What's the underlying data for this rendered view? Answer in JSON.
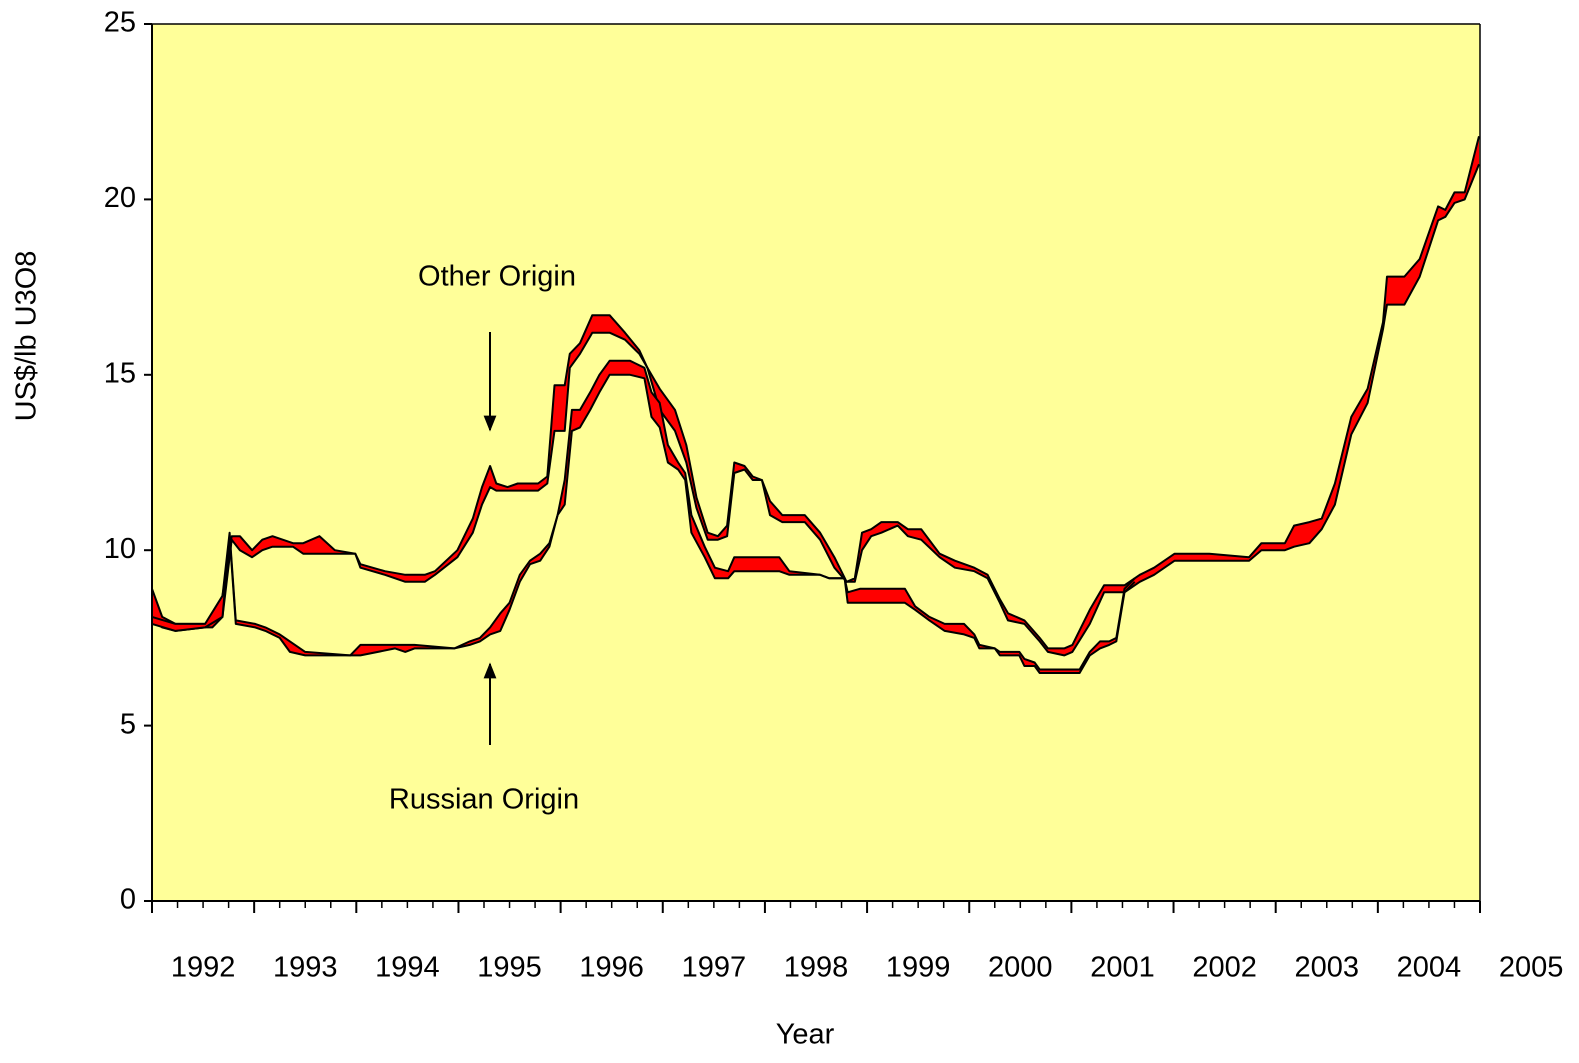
{
  "chart_data": {
    "type": "range_area",
    "x_label": "Year",
    "y_label": "US$/lb U3O8",
    "xlim": [
      1992,
      2005
    ],
    "xticks": [
      1992,
      1993,
      1994,
      1995,
      1996,
      1997,
      1998,
      1999,
      2000,
      2001,
      2002,
      2003,
      2004,
      2005
    ],
    "ylim": [
      0,
      25
    ],
    "yticks": [
      0,
      5,
      10,
      15,
      20,
      25
    ],
    "grid": false,
    "plot_background": "#ffff99",
    "series": [
      {
        "name": "Other Origin",
        "color": "#ff0000",
        "x": [
          1992.0,
          1992.1,
          1992.23,
          1992.52,
          1992.59,
          1992.69,
          1992.78,
          1992.86,
          1992.98,
          1993.08,
          1993.18,
          1993.38,
          1993.48,
          1993.64,
          1993.79,
          1993.99,
          1994.04,
          1994.28,
          1994.48,
          1994.67,
          1994.77,
          1994.99,
          1995.14,
          1995.23,
          1995.31,
          1995.37,
          1995.48,
          1995.58,
          1995.68,
          1995.78,
          1995.87,
          1995.94,
          1996.04,
          1996.09,
          1996.19,
          1996.31,
          1996.48,
          1996.63,
          1996.77,
          1996.85,
          1996.97,
          1997.12,
          1997.23,
          1997.33,
          1997.44,
          1997.54,
          1997.63,
          1997.7,
          1997.8,
          1997.88,
          1997.97,
          1998.05,
          1998.17,
          1998.39,
          1998.54,
          1998.68,
          1998.8,
          1998.88,
          1998.95,
          1999.04,
          1999.14,
          1999.3,
          1999.4,
          1999.53,
          1999.71,
          1999.86,
          2000.05,
          2000.18,
          2000.3,
          2000.38,
          2000.54,
          2000.69,
          2000.77,
          2000.93,
          2001.01,
          2001.18,
          2001.32,
          2001.52,
          2001.67,
          2001.81,
          2002.01,
          2002.35,
          2002.74,
          2002.86,
          2003.09,
          2003.18,
          2003.33,
          2003.45,
          2003.58,
          2003.74,
          2003.9,
          2004.05,
          2004.09,
          2004.26,
          2004.41,
          2004.59,
          2004.66,
          2004.75,
          2004.85,
          2004.99
        ],
        "low": [
          8.0,
          7.8,
          7.7,
          7.8,
          7.8,
          8.1,
          10.3,
          10.0,
          9.8,
          10.0,
          10.1,
          10.1,
          9.9,
          9.9,
          9.9,
          9.9,
          9.5,
          9.3,
          9.1,
          9.1,
          9.3,
          9.8,
          10.5,
          11.3,
          11.8,
          11.7,
          11.7,
          11.7,
          11.7,
          11.7,
          11.9,
          13.4,
          13.4,
          15.2,
          15.6,
          16.2,
          16.2,
          16.0,
          15.6,
          15.2,
          14.0,
          13.4,
          12.5,
          11.2,
          10.3,
          10.3,
          10.4,
          12.2,
          12.3,
          12.0,
          12.0,
          11.0,
          10.8,
          10.8,
          10.3,
          9.5,
          9.1,
          9.1,
          10.0,
          10.4,
          10.5,
          10.7,
          10.4,
          10.3,
          9.8,
          9.5,
          9.4,
          9.2,
          8.5,
          8.0,
          7.9,
          7.4,
          7.1,
          7.0,
          7.1,
          7.9,
          8.8,
          8.8,
          9.1,
          9.3,
          9.7,
          9.7,
          9.7,
          10.0,
          10.0,
          10.1,
          10.2,
          10.6,
          11.3,
          13.3,
          14.2,
          16.3,
          17.0,
          17.0,
          17.8,
          19.4,
          19.5,
          19.9,
          20.0,
          21.0
        ],
        "high": [
          8.9,
          8.1,
          7.9,
          7.9,
          8.0,
          8.7,
          10.4,
          10.4,
          10.0,
          10.3,
          10.4,
          10.2,
          10.2,
          10.4,
          10.0,
          9.9,
          9.6,
          9.4,
          9.3,
          9.3,
          9.4,
          10.0,
          10.9,
          11.8,
          12.4,
          11.9,
          11.8,
          11.9,
          11.9,
          11.9,
          12.1,
          14.7,
          14.7,
          15.6,
          15.9,
          16.7,
          16.7,
          16.2,
          15.7,
          15.2,
          14.6,
          14.0,
          13.0,
          11.5,
          10.5,
          10.4,
          10.7,
          12.5,
          12.4,
          12.1,
          12.0,
          11.4,
          11.0,
          11.0,
          10.5,
          9.8,
          9.1,
          9.2,
          10.5,
          10.6,
          10.8,
          10.8,
          10.6,
          10.6,
          9.9,
          9.7,
          9.5,
          9.3,
          8.6,
          8.2,
          8.0,
          7.5,
          7.2,
          7.2,
          7.3,
          8.3,
          9.0,
          9.0,
          9.3,
          9.5,
          9.9,
          9.9,
          9.8,
          10.2,
          10.2,
          10.7,
          10.8,
          10.9,
          11.9,
          13.8,
          14.6,
          16.5,
          17.8,
          17.8,
          18.3,
          19.8,
          19.7,
          20.2,
          20.2,
          21.8
        ]
      },
      {
        "name": "Russian Origin",
        "color": "#ff0000",
        "x": [
          1992.0,
          1992.23,
          1992.52,
          1992.69,
          1992.76,
          1992.82,
          1993.01,
          1993.11,
          1993.25,
          1993.35,
          1993.5,
          1993.94,
          1994.04,
          1994.38,
          1994.48,
          1994.57,
          1994.96,
          1995.11,
          1995.21,
          1995.31,
          1995.41,
          1995.5,
          1995.6,
          1995.7,
          1995.8,
          1995.89,
          1995.97,
          1996.04,
          1996.11,
          1996.19,
          1996.29,
          1996.38,
          1996.48,
          1996.68,
          1996.82,
          1996.89,
          1996.97,
          1997.05,
          1997.15,
          1997.22,
          1997.28,
          1997.41,
          1997.51,
          1997.64,
          1997.7,
          1998.14,
          1998.24,
          1998.54,
          1998.63,
          1998.78,
          1998.81,
          1998.93,
          1999.37,
          1999.47,
          1999.61,
          1999.76,
          1999.95,
          2000.05,
          2000.1,
          2000.25,
          2000.3,
          2000.49,
          2000.54,
          2000.64,
          2000.69,
          2001.08,
          2001.18,
          2001.28,
          2001.37,
          2001.44,
          2001.52,
          2001.62
        ],
        "low": [
          7.9,
          7.7,
          7.8,
          8.1,
          10.4,
          7.9,
          7.8,
          7.7,
          7.5,
          7.1,
          7.0,
          7.0,
          7.0,
          7.2,
          7.1,
          7.2,
          7.2,
          7.3,
          7.4,
          7.6,
          7.7,
          8.3,
          9.1,
          9.6,
          9.7,
          10.1,
          11.0,
          11.3,
          13.4,
          13.5,
          14.0,
          14.5,
          15.0,
          15.0,
          14.9,
          13.8,
          13.5,
          12.5,
          12.3,
          12.0,
          10.5,
          9.8,
          9.2,
          9.2,
          9.4,
          9.4,
          9.3,
          9.3,
          9.2,
          9.2,
          8.5,
          8.5,
          8.5,
          8.3,
          8.0,
          7.7,
          7.6,
          7.5,
          7.2,
          7.2,
          7.0,
          7.0,
          6.7,
          6.7,
          6.5,
          6.5,
          7.0,
          7.2,
          7.3,
          7.4,
          8.8,
          9.1
        ],
        "high": [
          8.1,
          7.9,
          7.9,
          8.7,
          10.5,
          8.0,
          7.9,
          7.8,
          7.6,
          7.4,
          7.1,
          7.0,
          7.3,
          7.3,
          7.3,
          7.3,
          7.2,
          7.4,
          7.5,
          7.8,
          8.2,
          8.5,
          9.3,
          9.7,
          9.9,
          10.2,
          11.0,
          12.0,
          14.0,
          14.0,
          14.5,
          15.0,
          15.4,
          15.4,
          15.2,
          14.5,
          14.2,
          13.0,
          12.5,
          12.2,
          11.0,
          10.1,
          9.5,
          9.4,
          9.8,
          9.8,
          9.4,
          9.3,
          9.2,
          9.2,
          8.8,
          8.9,
          8.9,
          8.4,
          8.1,
          7.9,
          7.9,
          7.6,
          7.3,
          7.2,
          7.1,
          7.1,
          6.9,
          6.8,
          6.6,
          6.6,
          7.1,
          7.4,
          7.4,
          7.5,
          8.9,
          9.2
        ]
      }
    ]
  }
}
